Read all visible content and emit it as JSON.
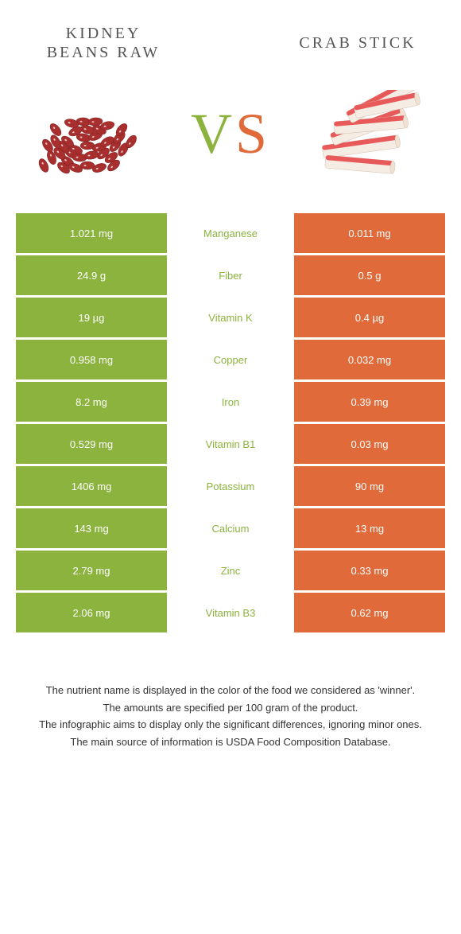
{
  "titles": {
    "left": "Kidney beans raw",
    "right": "Crab stick"
  },
  "vs": {
    "v": "V",
    "s": "S"
  },
  "colors": {
    "left_bg": "#8bb33d",
    "right_bg": "#e06a3a",
    "nutrient_green": "#8bb33d",
    "nutrient_orange": "#e06a3a",
    "title_color": "#555555",
    "footer_color": "#333333",
    "bean_fill": "#a92f2f",
    "bean_stroke": "#7a1f1f",
    "crab_white": "#f5ece3",
    "crab_red": "#e85a5a"
  },
  "rows": [
    {
      "left": "1.021 mg",
      "nutrient": "Manganese",
      "right": "0.011 mg",
      "winner": "left"
    },
    {
      "left": "24.9 g",
      "nutrient": "Fiber",
      "right": "0.5 g",
      "winner": "left"
    },
    {
      "left": "19 µg",
      "nutrient": "Vitamin K",
      "right": "0.4 µg",
      "winner": "left"
    },
    {
      "left": "0.958 mg",
      "nutrient": "Copper",
      "right": "0.032 mg",
      "winner": "left"
    },
    {
      "left": "8.2 mg",
      "nutrient": "Iron",
      "right": "0.39 mg",
      "winner": "left"
    },
    {
      "left": "0.529 mg",
      "nutrient": "Vitamin B1",
      "right": "0.03 mg",
      "winner": "left"
    },
    {
      "left": "1406 mg",
      "nutrient": "Potassium",
      "right": "90 mg",
      "winner": "left"
    },
    {
      "left": "143 mg",
      "nutrient": "Calcium",
      "right": "13 mg",
      "winner": "left"
    },
    {
      "left": "2.79 mg",
      "nutrient": "Zinc",
      "right": "0.33 mg",
      "winner": "left"
    },
    {
      "left": "2.06 mg",
      "nutrient": "Vitamin B3",
      "right": "0.62 mg",
      "winner": "left"
    }
  ],
  "footer": {
    "line1": "The nutrient name is displayed in the color of the food we considered as 'winner'.",
    "line2": "The amounts are specified per 100 gram of the product.",
    "line3": "The infographic aims to display only the significant differences, ignoring minor ones.",
    "line4": "The main source of information is USDA Food Composition Database."
  }
}
